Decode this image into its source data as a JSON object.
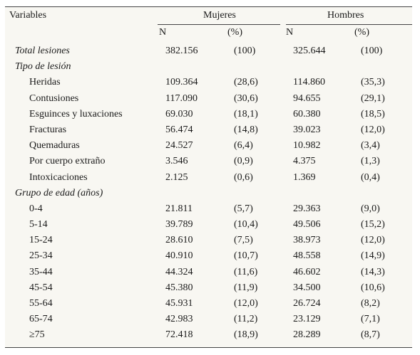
{
  "header": {
    "variables": "Variables",
    "mujeres": "Mujeres",
    "hombres": "Hombres",
    "n": "N",
    "pct": "(%)"
  },
  "rows": [
    {
      "label": "Total lesiones",
      "type": "total",
      "mn": "382.156",
      "mp": "(100)",
      "hn": "325.644",
      "hp": "(100)"
    },
    {
      "label": "Tipo de lesión",
      "type": "section"
    },
    {
      "label": "Heridas",
      "type": "indent",
      "mn": "109.364",
      "mp": "(28,6)",
      "hn": "114.860",
      "hp": "(35,3)"
    },
    {
      "label": "Contusiones",
      "type": "indent",
      "mn": "117.090",
      "mp": "(30,6)",
      "hn": "94.655",
      "hp": "(29,1)"
    },
    {
      "label": "Esguinces y luxaciones",
      "type": "indent",
      "mn": "69.030",
      "mp": "(18,1)",
      "hn": "60.380",
      "hp": "(18,5)"
    },
    {
      "label": "Fracturas",
      "type": "indent",
      "mn": "56.474",
      "mp": "(14,8)",
      "hn": "39.023",
      "hp": "(12,0)"
    },
    {
      "label": "Quemaduras",
      "type": "indent",
      "mn": "24.527",
      "mp": "(6,4)",
      "hn": "10.982",
      "hp": "(3,4)"
    },
    {
      "label": "Por cuerpo extraño",
      "type": "indent",
      "mn": "3.546",
      "mp": "(0,9)",
      "hn": "4.375",
      "hp": "(1,3)"
    },
    {
      "label": "Intoxicaciones",
      "type": "indent",
      "mn": "2.125",
      "mp": "(0,6)",
      "hn": "1.369",
      "hp": "(0,4)"
    },
    {
      "label": "Grupo de edad (años)",
      "type": "section"
    },
    {
      "label": "0-4",
      "type": "indent",
      "mn": "21.811",
      "mp": "(5,7)",
      "hn": "29.363",
      "hp": "(9,0)"
    },
    {
      "label": "5-14",
      "type": "indent",
      "mn": "39.789",
      "mp": "(10,4)",
      "hn": "49.506",
      "hp": "(15,2)"
    },
    {
      "label": "15-24",
      "type": "indent",
      "mn": "28.610",
      "mp": "(7,5)",
      "hn": "38.973",
      "hp": "(12,0)"
    },
    {
      "label": "25-34",
      "type": "indent",
      "mn": "40.910",
      "mp": "(10,7)",
      "hn": "48.558",
      "hp": "(14,9)"
    },
    {
      "label": "35-44",
      "type": "indent",
      "mn": "44.324",
      "mp": "(11,6)",
      "hn": "46.602",
      "hp": "(14,3)"
    },
    {
      "label": "45-54",
      "type": "indent",
      "mn": "45.380",
      "mp": "(11,9)",
      "hn": "34.500",
      "hp": "(10,6)"
    },
    {
      "label": "55-64",
      "type": "indent",
      "mn": "45.931",
      "mp": "(12,0)",
      "hn": "26.724",
      "hp": "(8,2)"
    },
    {
      "label": "65-74",
      "type": "indent",
      "mn": "42.983",
      "mp": "(11,2)",
      "hn": "23.129",
      "hp": "(7,1)"
    },
    {
      "label": "≥75",
      "type": "indent",
      "mn": "72.418",
      "mp": "(18,9)",
      "hn": "28.289",
      "hp": "(8,7)"
    }
  ]
}
